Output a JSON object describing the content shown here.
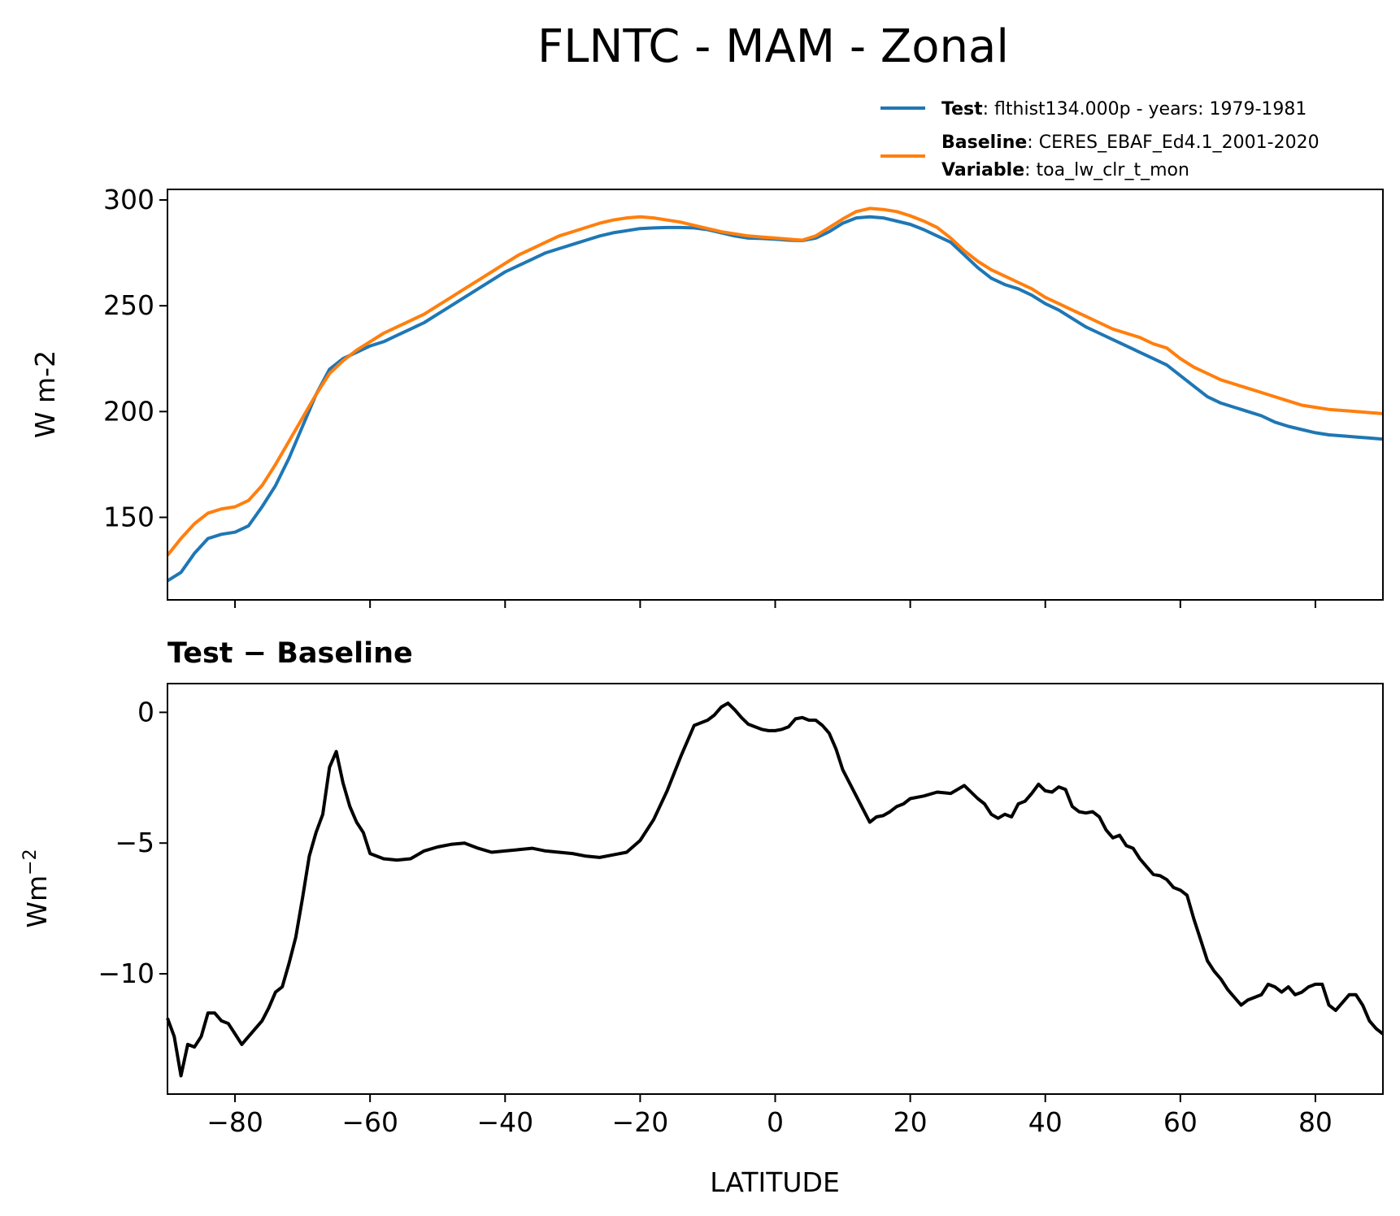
{
  "title": "FLNTC - MAM - Zonal",
  "legend": {
    "test": {
      "name": "Test",
      "sep": ": ",
      "desc": "flthist134.000p - years: 1979-1981"
    },
    "baseline": {
      "name": "Baseline",
      "sep": ": ",
      "desc": "CERES_EBAF_Ed4.1_2001-2020"
    },
    "variable": {
      "name": "Variable",
      "sep": ": ",
      "desc": "toa_lw_clr_t_mon"
    }
  },
  "colors": {
    "test": "#1f77b4",
    "baseline": "#ff7f0e",
    "diff": "#000000"
  },
  "chart_data": [
    {
      "type": "line",
      "panel": "top",
      "ylabel": "W m-2",
      "xlim": [
        -90,
        90
      ],
      "ylim": [
        111,
        305
      ],
      "yticks": [
        150,
        200,
        250,
        300
      ],
      "xticks": [
        -80,
        -60,
        -40,
        -20,
        0,
        20,
        40,
        60,
        80
      ],
      "grid": false,
      "legend_position": "top-right",
      "x": [
        -90,
        -88,
        -86,
        -84,
        -82,
        -80,
        -78,
        -76,
        -74,
        -72,
        -70,
        -68,
        -66,
        -64,
        -62,
        -60,
        -58,
        -56,
        -54,
        -52,
        -50,
        -48,
        -46,
        -44,
        -42,
        -40,
        -38,
        -36,
        -34,
        -32,
        -30,
        -28,
        -26,
        -24,
        -22,
        -20,
        -18,
        -16,
        -14,
        -12,
        -10,
        -8,
        -6,
        -4,
        -2,
        0,
        2,
        4,
        6,
        8,
        10,
        12,
        14,
        16,
        18,
        20,
        22,
        24,
        26,
        28,
        30,
        32,
        34,
        36,
        38,
        40,
        42,
        44,
        46,
        48,
        50,
        52,
        54,
        56,
        58,
        60,
        62,
        64,
        66,
        68,
        70,
        72,
        74,
        76,
        78,
        80,
        82,
        84,
        86,
        88,
        90
      ],
      "series": [
        {
          "name": "Test",
          "color": "#1f77b4",
          "values": [
            120,
            124,
            133,
            140,
            142,
            143,
            146,
            155,
            165,
            178,
            193,
            208,
            220,
            225,
            228,
            231,
            233,
            236,
            239,
            242,
            246,
            250,
            254,
            258,
            262,
            266,
            269,
            272,
            275,
            277,
            279,
            281,
            283,
            284.5,
            285.5,
            286.5,
            286.8,
            287,
            287,
            286.8,
            286,
            284.5,
            283,
            282,
            281.8,
            281.5,
            281,
            280.8,
            282,
            285,
            289,
            291.5,
            292,
            291.5,
            290,
            288.5,
            286,
            283,
            280,
            274,
            268,
            263,
            260,
            258,
            255,
            251,
            248,
            244,
            240,
            237,
            234,
            231,
            228,
            225,
            222,
            217,
            212,
            207,
            204,
            202,
            200,
            198,
            195,
            193,
            191.5,
            190,
            189,
            188.5,
            188,
            187.5,
            187
          ]
        },
        {
          "name": "Baseline",
          "color": "#ff7f0e",
          "values": [
            132,
            140,
            147,
            152,
            154,
            155,
            158,
            165,
            175,
            186,
            197,
            208,
            218,
            224,
            229,
            233,
            237,
            240,
            243,
            246,
            250,
            254,
            258,
            262,
            266,
            270,
            274,
            277,
            280,
            283,
            285,
            287,
            289,
            290.5,
            291.5,
            292,
            291.5,
            290.5,
            289.5,
            288,
            286.5,
            285,
            284,
            283,
            282.5,
            282,
            281.5,
            281,
            283,
            287,
            291,
            294.5,
            296,
            295.5,
            294.5,
            292.5,
            290,
            287,
            282,
            276,
            271,
            267,
            264,
            261,
            258,
            254,
            251,
            248,
            245,
            242,
            239,
            237,
            235,
            232,
            230,
            225,
            221,
            218,
            215,
            213,
            211,
            209,
            207,
            205,
            203,
            202,
            201,
            200.5,
            200,
            199.5,
            199
          ]
        }
      ]
    },
    {
      "type": "line",
      "panel": "bottom",
      "title": "Test − Baseline",
      "ylabel": "Wm",
      "ylabel_exp": "−2",
      "xlabel": "LATITUDE",
      "xlim": [
        -90,
        90
      ],
      "ylim": [
        -14.6,
        1.1
      ],
      "yticks": [
        -10,
        -5,
        0
      ],
      "xticks": [
        -80,
        -60,
        -40,
        -20,
        0,
        20,
        40,
        60,
        80
      ],
      "grid": false,
      "x": [
        -90,
        -89,
        -88,
        -87,
        -86,
        -85,
        -84,
        -83,
        -82,
        -81,
        -80,
        -79,
        -78,
        -77,
        -76,
        -75,
        -74,
        -73,
        -72,
        -71,
        -70,
        -69,
        -68,
        -67,
        -66,
        -65,
        -64,
        -63,
        -62,
        -61,
        -60,
        -58,
        -56,
        -54,
        -52,
        -50,
        -48,
        -46,
        -44,
        -42,
        -40,
        -38,
        -36,
        -34,
        -32,
        -30,
        -28,
        -26,
        -24,
        -22,
        -20,
        -18,
        -16,
        -14,
        -12,
        -10,
        -9,
        -8,
        -7,
        -6,
        -5,
        -4,
        -3,
        -2,
        -1,
        0,
        1,
        2,
        3,
        4,
        5,
        6,
        7,
        8,
        9,
        10,
        11,
        12,
        13,
        14,
        15,
        16,
        17,
        18,
        19,
        20,
        22,
        24,
        26,
        28,
        30,
        31,
        32,
        33,
        34,
        35,
        36,
        37,
        38,
        39,
        40,
        41,
        42,
        43,
        44,
        45,
        46,
        47,
        48,
        49,
        50,
        51,
        52,
        53,
        54,
        55,
        56,
        57,
        58,
        59,
        60,
        61,
        62,
        63,
        64,
        65,
        66,
        67,
        68,
        69,
        70,
        71,
        72,
        73,
        74,
        75,
        76,
        77,
        78,
        79,
        80,
        81,
        82,
        83,
        84,
        85,
        86,
        87,
        88,
        89,
        90
      ],
      "series": [
        {
          "name": "Test − Baseline",
          "color": "#000000",
          "values": [
            -11.7,
            -12.4,
            -13.9,
            -12.7,
            -12.8,
            -12.4,
            -11.5,
            -11.5,
            -11.8,
            -11.9,
            -12.3,
            -12.7,
            -12.4,
            -12.1,
            -11.8,
            -11.3,
            -10.7,
            -10.5,
            -9.6,
            -8.6,
            -7.1,
            -5.5,
            -4.6,
            -3.9,
            -2.1,
            -1.5,
            -2.7,
            -3.6,
            -4.2,
            -4.6,
            -5.4,
            -5.6,
            -5.65,
            -5.6,
            -5.3,
            -5.15,
            -5.05,
            -5.0,
            -5.2,
            -5.35,
            -5.3,
            -5.25,
            -5.2,
            -5.3,
            -5.35,
            -5.4,
            -5.5,
            -5.55,
            -5.45,
            -5.35,
            -4.9,
            -4.1,
            -3.0,
            -1.7,
            -0.5,
            -0.3,
            -0.1,
            0.2,
            0.35,
            0.1,
            -0.2,
            -0.45,
            -0.55,
            -0.65,
            -0.7,
            -0.7,
            -0.65,
            -0.55,
            -0.25,
            -0.2,
            -0.3,
            -0.3,
            -0.5,
            -0.8,
            -1.4,
            -2.2,
            -2.7,
            -3.2,
            -3.7,
            -4.2,
            -4.0,
            -3.95,
            -3.8,
            -3.6,
            -3.5,
            -3.3,
            -3.2,
            -3.05,
            -3.1,
            -2.8,
            -3.3,
            -3.5,
            -3.9,
            -4.05,
            -3.9,
            -4.0,
            -3.5,
            -3.4,
            -3.1,
            -2.75,
            -3.0,
            -3.05,
            -2.85,
            -2.95,
            -3.6,
            -3.8,
            -3.85,
            -3.8,
            -4.0,
            -4.5,
            -4.8,
            -4.7,
            -5.1,
            -5.2,
            -5.6,
            -5.9,
            -6.2,
            -6.25,
            -6.4,
            -6.7,
            -6.8,
            -7.0,
            -7.9,
            -8.7,
            -9.5,
            -9.9,
            -10.2,
            -10.6,
            -10.9,
            -11.2,
            -11.0,
            -10.9,
            -10.8,
            -10.4,
            -10.5,
            -10.7,
            -10.5,
            -10.8,
            -10.7,
            -10.5,
            -10.4,
            -10.4,
            -11.2,
            -11.4,
            -11.1,
            -10.8,
            -10.8,
            -11.2,
            -11.8,
            -12.1,
            -12.3
          ]
        }
      ]
    }
  ]
}
